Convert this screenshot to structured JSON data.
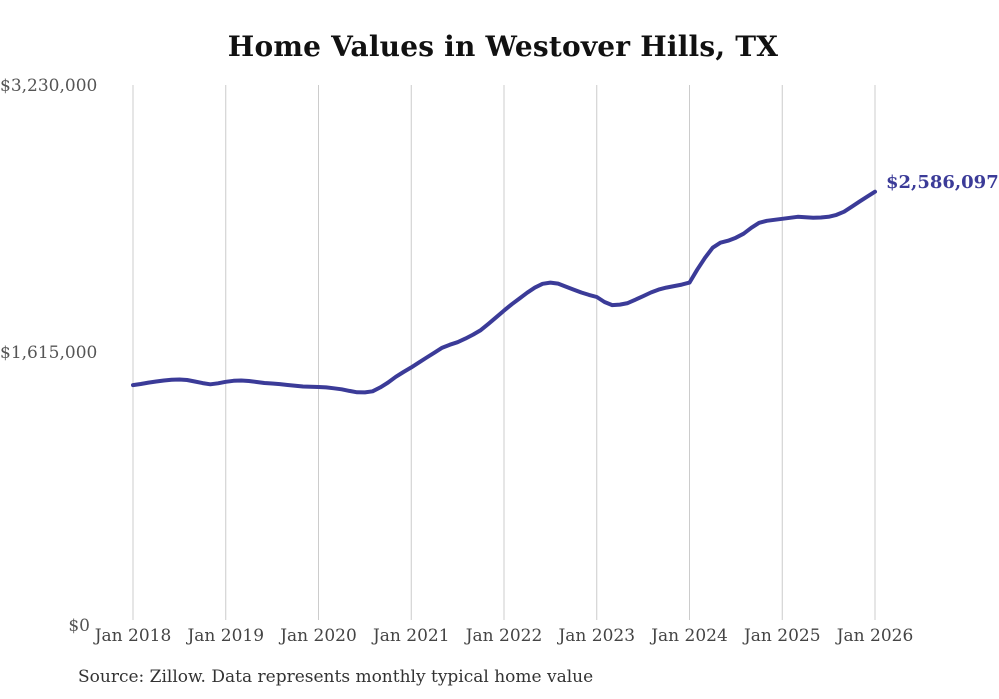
{
  "title": "Home Values in Westover Hills, TX",
  "source_note": "Source: Zillow. Data represents monthly typical home value",
  "end_label": "$2,586,097",
  "colors": {
    "line": "#3b3b98",
    "grid": "#cccccc",
    "title": "#111111",
    "y_axis_label": "#555555",
    "x_axis_label": "#444444",
    "end_label": "#3b3b98",
    "background": "#ffffff"
  },
  "chart_data": {
    "type": "line",
    "title": "Home Values in Westover Hills, TX",
    "series_name": "Monthly typical home value",
    "x_start": "2018-01",
    "x_freq": "monthly",
    "x_tick_labels": [
      "Jan 2018",
      "Jan 2019",
      "Jan 2020",
      "Jan 2021",
      "Jan 2022",
      "Jan 2023",
      "Jan 2024",
      "Jan 2025",
      "Jan 2026"
    ],
    "y_tick_labels": [
      "$0",
      "$1,615,000",
      "$3,230,000"
    ],
    "y_tick_values": [
      0,
      1615000,
      3230000
    ],
    "ylim": [
      0,
      3230000
    ],
    "grid": "vertical-only",
    "legend": "none",
    "last_point_label": "$2,586,097",
    "last_point_value": 2586097,
    "values": [
      1418000,
      1425000,
      1433000,
      1440000,
      1446000,
      1450000,
      1452000,
      1449000,
      1440000,
      1430000,
      1423000,
      1429000,
      1438000,
      1444000,
      1446000,
      1443000,
      1437000,
      1431000,
      1428000,
      1424000,
      1419000,
      1414000,
      1410000,
      1408000,
      1407000,
      1404000,
      1399000,
      1393000,
      1383000,
      1375000,
      1374000,
      1381000,
      1404000,
      1434000,
      1468000,
      1497000,
      1525000,
      1555000,
      1585000,
      1614000,
      1644000,
      1662000,
      1677000,
      1699000,
      1723000,
      1750000,
      1788000,
      1828000,
      1868000,
      1906000,
      1941000,
      1976000,
      2007000,
      2030000,
      2037000,
      2031000,
      2013000,
      1995000,
      1977000,
      1963000,
      1950000,
      1920000,
      1901000,
      1904000,
      1913000,
      1934000,
      1955000,
      1977000,
      1995000,
      2007000,
      2016000,
      2025000,
      2037000,
      2115000,
      2187000,
      2248000,
      2278000,
      2290000,
      2308000,
      2332000,
      2368000,
      2398000,
      2410000,
      2416000,
      2422000,
      2428000,
      2434000,
      2431000,
      2428000,
      2430000,
      2434000,
      2446000,
      2465000,
      2495000,
      2526000,
      2556000,
      2586097
    ]
  }
}
